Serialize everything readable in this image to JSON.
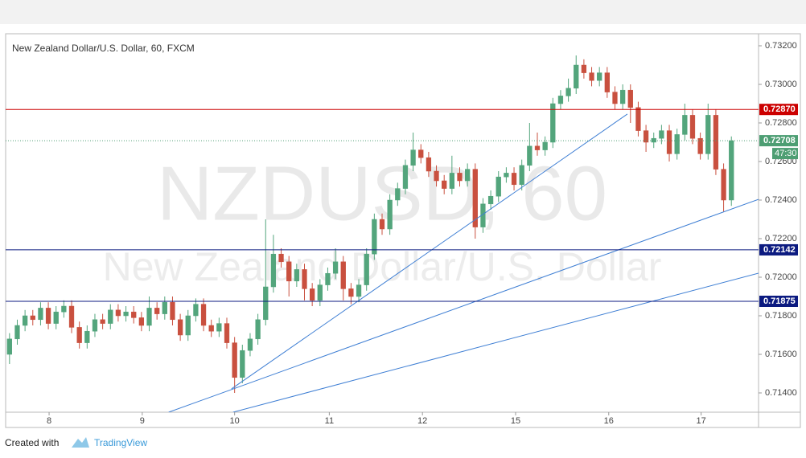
{
  "chart_data": {
    "type": "candlestick",
    "title": "New Zealand Dollar/U.S. Dollar, 60, FXCM",
    "watermark": [
      "NZDUSD, 60",
      "New Zealand Dollar/U.S. Dollar"
    ],
    "xlim": [
      0,
      97
    ],
    "xticks": [
      {
        "value": 5.6,
        "label": "8"
      },
      {
        "value": 17.6,
        "label": "9"
      },
      {
        "value": 29.5,
        "label": "10"
      },
      {
        "value": 41.7,
        "label": "11"
      },
      {
        "value": 53.7,
        "label": "12"
      },
      {
        "value": 65.7,
        "label": "15"
      },
      {
        "value": 77.7,
        "label": "16"
      },
      {
        "value": 89.6,
        "label": "17"
      }
    ],
    "ylim": [
      0.713,
      0.732625
    ],
    "yticks": [
      {
        "value": 0.714,
        "label": "0.71400"
      },
      {
        "value": 0.716,
        "label": "0.71600"
      },
      {
        "value": 0.718,
        "label": "0.71800"
      },
      {
        "value": 0.72,
        "label": "0.72000"
      },
      {
        "value": 0.722,
        "label": "0.72200"
      },
      {
        "value": 0.724,
        "label": "0.72400"
      },
      {
        "value": 0.726,
        "label": "0.72600"
      },
      {
        "value": 0.728,
        "label": "0.72800"
      },
      {
        "value": 0.73,
        "label": "0.73000"
      },
      {
        "value": 0.732,
        "label": "0.73200"
      }
    ],
    "up_color": "#53a57c",
    "down_color": "#c9503f",
    "open": [
      0.716,
      0.7168,
      0.7175,
      0.718,
      0.7178,
      0.7184,
      0.7176,
      0.7182,
      0.7185,
      0.7174,
      0.7166,
      0.7172,
      0.7178,
      0.7176,
      0.7183,
      0.718,
      0.7182,
      0.7179,
      0.7175,
      0.7184,
      0.7181,
      0.7187,
      0.7178,
      0.717,
      0.718,
      0.7186,
      0.7175,
      0.7172,
      0.7176,
      0.7166,
      0.7148,
      0.7162,
      0.7168,
      0.7178,
      0.7195,
      0.7212,
      0.7208,
      0.7198,
      0.7204,
      0.7194,
      0.7188,
      0.7196,
      0.7202,
      0.7208,
      0.7194,
      0.719,
      0.7196,
      0.7212,
      0.723,
      0.7225,
      0.724,
      0.7246,
      0.7258,
      0.7266,
      0.7262,
      0.7255,
      0.725,
      0.7246,
      0.7254,
      0.725,
      0.7256,
      0.7226,
      0.7238,
      0.7242,
      0.7252,
      0.7254,
      0.7248,
      0.7258,
      0.7268,
      0.7266,
      0.727,
      0.729,
      0.7294,
      0.7298,
      0.731,
      0.7306,
      0.7302,
      0.7306,
      0.7296,
      0.729,
      0.7297,
      0.7288,
      0.7276,
      0.727,
      0.7272,
      0.7276,
      0.7264,
      0.7274,
      0.7284,
      0.7272,
      0.7264,
      0.7284,
      0.7256,
      0.724
    ],
    "high": [
      0.7171,
      0.7178,
      0.7183,
      0.7183,
      0.7187,
      0.7187,
      0.7185,
      0.7188,
      0.7188,
      0.7177,
      0.7175,
      0.7181,
      0.7181,
      0.7186,
      0.7186,
      0.7185,
      0.7185,
      0.7182,
      0.719,
      0.7187,
      0.719,
      0.719,
      0.7181,
      0.7183,
      0.7189,
      0.7189,
      0.7178,
      0.7179,
      0.7179,
      0.7169,
      0.7165,
      0.7171,
      0.7181,
      0.723,
      0.7222,
      0.7215,
      0.7211,
      0.7207,
      0.7207,
      0.7197,
      0.7199,
      0.7205,
      0.7215,
      0.7211,
      0.7197,
      0.7199,
      0.7215,
      0.7233,
      0.7233,
      0.7243,
      0.7249,
      0.7261,
      0.7275,
      0.7269,
      0.7265,
      0.7258,
      0.7253,
      0.7263,
      0.7257,
      0.7259,
      0.7259,
      0.7241,
      0.7245,
      0.7255,
      0.7257,
      0.7257,
      0.7261,
      0.728,
      0.7275,
      0.7273,
      0.7293,
      0.7297,
      0.7303,
      0.7315,
      0.7313,
      0.7309,
      0.7309,
      0.7309,
      0.7299,
      0.73,
      0.73,
      0.7291,
      0.7279,
      0.7275,
      0.7279,
      0.7279,
      0.7277,
      0.729,
      0.7287,
      0.7275,
      0.729,
      0.7287,
      0.7259,
      0.7273
    ],
    "low": [
      0.7155,
      0.7165,
      0.7172,
      0.7175,
      0.7175,
      0.7173,
      0.7173,
      0.7179,
      0.7171,
      0.7163,
      0.7163,
      0.7169,
      0.7173,
      0.7173,
      0.7177,
      0.7177,
      0.7176,
      0.7172,
      0.7172,
      0.7178,
      0.7178,
      0.7175,
      0.7167,
      0.7167,
      0.7177,
      0.7172,
      0.7169,
      0.7169,
      0.7163,
      0.714,
      0.7145,
      0.7159,
      0.7165,
      0.7175,
      0.7192,
      0.7205,
      0.719,
      0.7195,
      0.7188,
      0.7185,
      0.7185,
      0.7193,
      0.7199,
      0.7188,
      0.7186,
      0.7187,
      0.7193,
      0.7209,
      0.7222,
      0.7222,
      0.7237,
      0.7243,
      0.7255,
      0.7259,
      0.7252,
      0.7247,
      0.7243,
      0.7243,
      0.7247,
      0.7247,
      0.722,
      0.7223,
      0.7235,
      0.7239,
      0.7249,
      0.7245,
      0.7245,
      0.7255,
      0.7263,
      0.7263,
      0.7267,
      0.7287,
      0.7291,
      0.7295,
      0.7303,
      0.7299,
      0.7299,
      0.7293,
      0.7287,
      0.7287,
      0.728,
      0.7273,
      0.7265,
      0.7267,
      0.7269,
      0.726,
      0.7261,
      0.7271,
      0.7269,
      0.7261,
      0.7261,
      0.7253,
      0.7234,
      0.7237
    ],
    "close": [
      0.7168,
      0.7175,
      0.718,
      0.7178,
      0.7184,
      0.7176,
      0.7182,
      0.7185,
      0.7174,
      0.7166,
      0.7172,
      0.7178,
      0.7176,
      0.7183,
      0.718,
      0.7182,
      0.7179,
      0.7175,
      0.7184,
      0.7181,
      0.7187,
      0.7178,
      0.717,
      0.718,
      0.7186,
      0.7175,
      0.7172,
      0.7176,
      0.7166,
      0.7148,
      0.7162,
      0.7168,
      0.7178,
      0.7195,
      0.7212,
      0.7208,
      0.7198,
      0.7204,
      0.7194,
      0.7188,
      0.7196,
      0.7202,
      0.7208,
      0.7194,
      0.719,
      0.7196,
      0.7212,
      0.723,
      0.7225,
      0.724,
      0.7246,
      0.7258,
      0.7266,
      0.7262,
      0.7255,
      0.725,
      0.7246,
      0.7254,
      0.725,
      0.7256,
      0.7226,
      0.7238,
      0.7242,
      0.7252,
      0.7254,
      0.7248,
      0.7258,
      0.7268,
      0.7266,
      0.727,
      0.729,
      0.7294,
      0.7298,
      0.731,
      0.7306,
      0.7302,
      0.7306,
      0.7296,
      0.729,
      0.7297,
      0.7288,
      0.7276,
      0.727,
      0.7272,
      0.7276,
      0.7264,
      0.7274,
      0.7284,
      0.7272,
      0.7264,
      0.7284,
      0.7256,
      0.724,
      0.72708
    ],
    "levels": [
      {
        "value": 0.7287,
        "label": "0.72870",
        "color": "#cc0000"
      },
      {
        "value": 0.72142,
        "label": "0.72142",
        "color": "#0b1a80"
      },
      {
        "value": 0.71875,
        "label": "0.71875",
        "color": "#0b1a80"
      }
    ],
    "last_price": 0.72708,
    "countdown": "47:30",
    "last_color": "#4d9e73",
    "trendline_color": "#3f7fd4",
    "trendlines": [
      {
        "x": [
          29.1,
          80.1
        ],
        "y": [
          0.71421,
          0.72846
        ]
      },
      {
        "x": [
          21.0,
          97
        ],
        "y": [
          0.713,
          0.72404
        ]
      },
      {
        "x": [
          29.3,
          97
        ],
        "y": [
          0.713,
          0.72021
        ]
      }
    ]
  },
  "footer": {
    "created_with": "Created with",
    "brand": "TradingView"
  }
}
